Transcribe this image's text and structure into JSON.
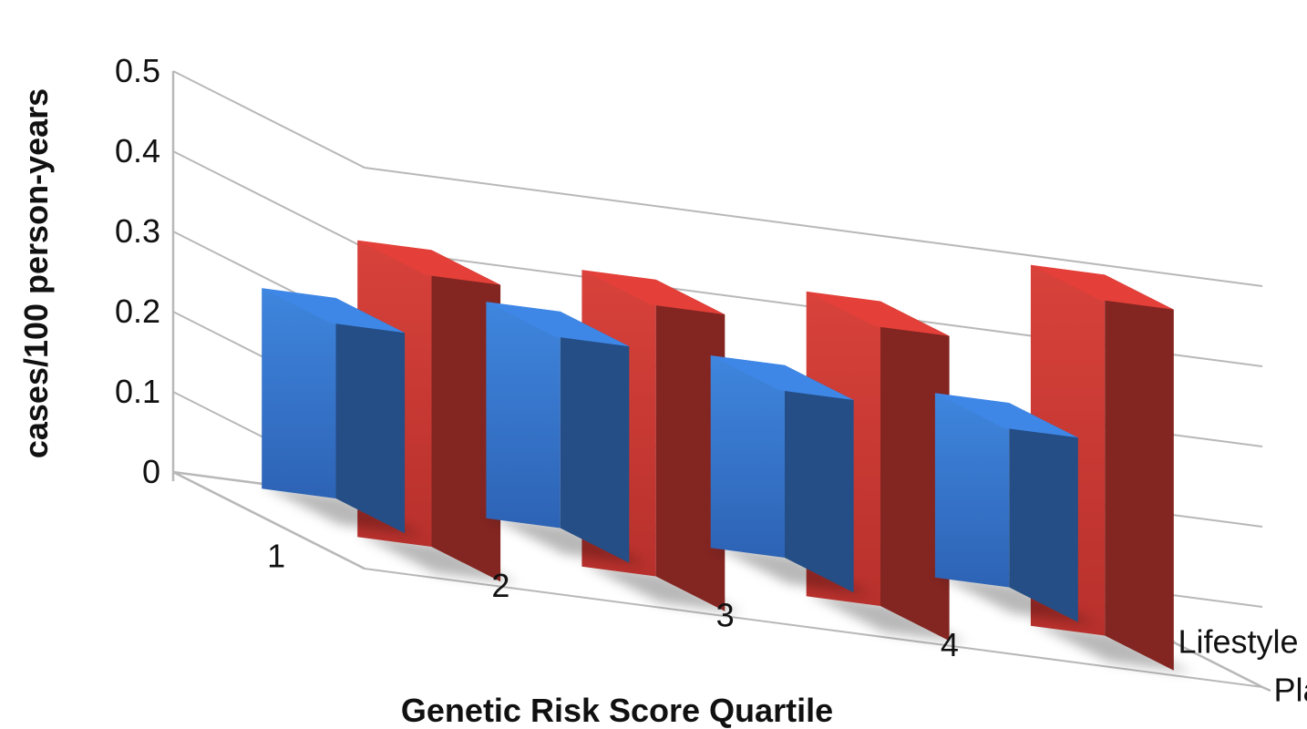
{
  "chart_data": {
    "type": "bar",
    "title": "",
    "xlabel": "Genetic Risk Score Quartile",
    "ylabel": "cases/100 person-years",
    "ylim": [
      0,
      0.5
    ],
    "yticks": [
      "0",
      "0.1",
      "0.2",
      "0.3",
      "0.4",
      "0.5"
    ],
    "ytick_values": [
      0,
      0.1,
      0.2,
      0.3,
      0.4,
      0.5
    ],
    "categories": [
      "1",
      "2",
      "3",
      "4"
    ],
    "grid": true,
    "series": [
      {
        "name": "Lifestyle",
        "values": [
          0.25,
          0.27,
          0.24,
          0.23
        ],
        "color": "#3a7dd6"
      },
      {
        "name": "Placebo",
        "values": [
          0.37,
          0.37,
          0.38,
          0.45
        ],
        "color": "#d33b35"
      }
    ]
  }
}
